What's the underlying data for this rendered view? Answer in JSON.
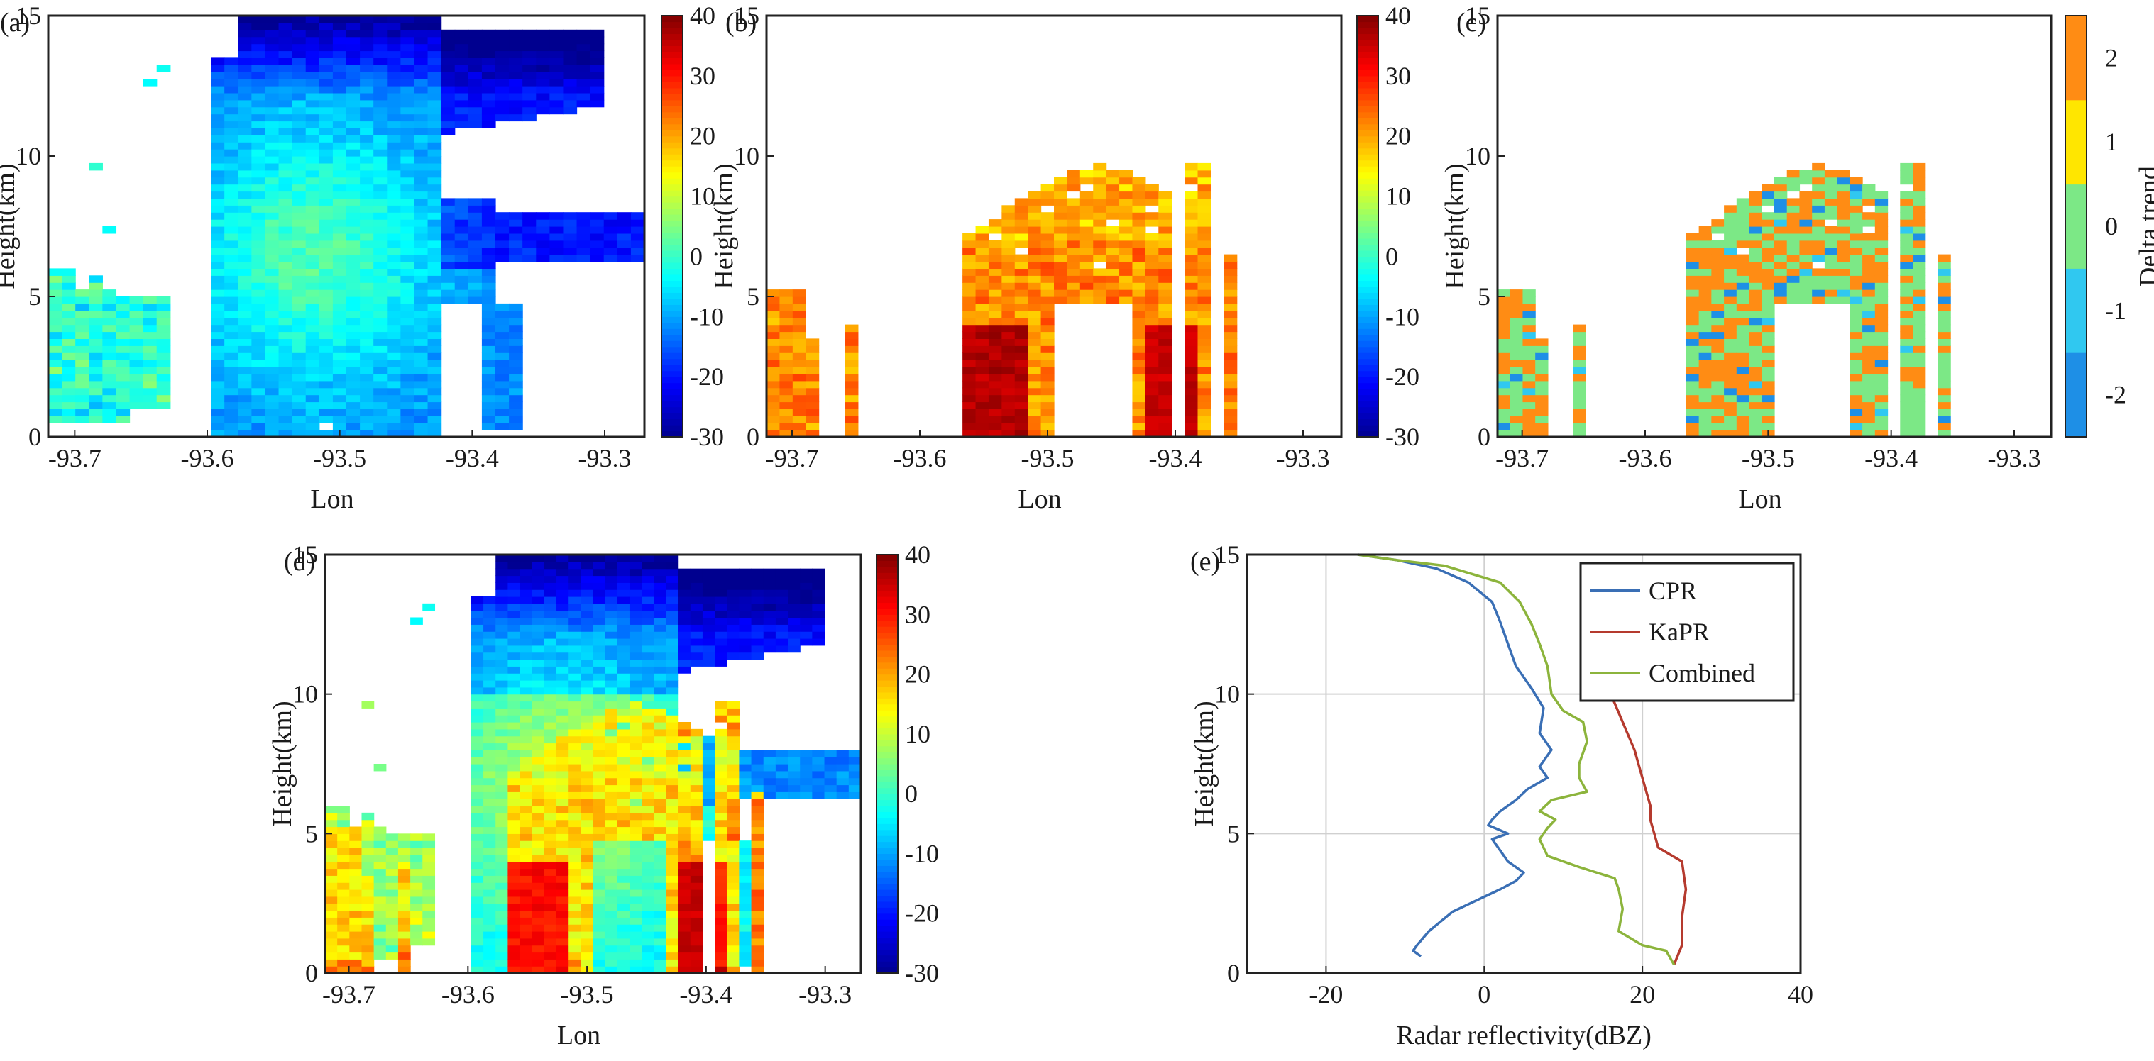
{
  "figure": {
    "colors": {
      "axis": "#222222",
      "grid": "#d0d0d0",
      "jet": [
        "#00008f",
        "#0000ff",
        "#0080ff",
        "#00ffff",
        "#80ff80",
        "#ffff00",
        "#ff8000",
        "#ff0000",
        "#800000"
      ],
      "delta": [
        "#1e8fe6",
        "#30c8f0",
        "#7ce886",
        "#ffe600",
        "#ff8c14"
      ]
    }
  },
  "chart_data": [
    {
      "id": "a",
      "panel_label": "(a)",
      "type": "heatmap",
      "description_role": "CPR reflectivity cross-section",
      "xlabel": "Lon",
      "ylabel": "Height(km)",
      "xlim": [
        -93.72,
        -93.27
      ],
      "ylim": [
        0,
        15
      ],
      "xticks": [
        "-93.7",
        "-93.6",
        "-93.5",
        "-93.4",
        "-93.3"
      ],
      "yticks": [
        "0",
        "5",
        "10",
        "15"
      ],
      "colorbar": {
        "range": [
          -30,
          40
        ],
        "ticks": [
          "40",
          "30",
          "20",
          "10",
          "0",
          "-10",
          "-20",
          "-30"
        ]
      },
      "field": "cpr"
    },
    {
      "id": "b",
      "panel_label": "(b)",
      "type": "heatmap",
      "xlabel": "Lon",
      "ylabel": "Height(km)",
      "xlim": [
        -93.72,
        -93.27
      ],
      "ylim": [
        0,
        15
      ],
      "xticks": [
        "-93.7",
        "-93.6",
        "-93.5",
        "-93.4",
        "-93.3"
      ],
      "yticks": [
        "0",
        "5",
        "10",
        "15"
      ],
      "colorbar": {
        "range": [
          -30,
          40
        ],
        "ticks": [
          "40",
          "30",
          "20",
          "10",
          "0",
          "-10",
          "-20",
          "-30"
        ]
      },
      "field": "kapr"
    },
    {
      "id": "c",
      "panel_label": "(c)",
      "type": "heatmap",
      "xlabel": "Lon",
      "ylabel": "Height(km)",
      "xlim": [
        -93.72,
        -93.27
      ],
      "ylim": [
        0,
        15
      ],
      "xticks": [
        "-93.7",
        "-93.6",
        "-93.5",
        "-93.4",
        "-93.3"
      ],
      "yticks": [
        "0",
        "5",
        "10",
        "15"
      ],
      "colorbar": {
        "label": "Delta trend",
        "ticks": [
          "2",
          "1",
          "0",
          "-1",
          "-2"
        ],
        "classes": [
          -2,
          -1,
          0,
          1,
          2
        ]
      },
      "field": "delta"
    },
    {
      "id": "d",
      "panel_label": "(d)",
      "type": "heatmap",
      "xlabel": "Lon",
      "ylabel": "Height(km)",
      "xlim": [
        -93.72,
        -93.27
      ],
      "ylim": [
        0,
        15
      ],
      "xticks": [
        "-93.7",
        "-93.6",
        "-93.5",
        "-93.4",
        "-93.3"
      ],
      "yticks": [
        "0",
        "5",
        "10",
        "15"
      ],
      "colorbar": {
        "range": [
          -30,
          40
        ],
        "ticks": [
          "40",
          "30",
          "20",
          "10",
          "0",
          "-10",
          "-20",
          "-30"
        ]
      },
      "field": "combined"
    },
    {
      "id": "e",
      "panel_label": "(e)",
      "type": "line",
      "xlabel": "Radar reflectivity(dBZ)",
      "ylabel": "Height(km)",
      "xlim": [
        -30,
        40
      ],
      "ylim": [
        0,
        15
      ],
      "xticks": [
        "-20",
        "0",
        "20",
        "40"
      ],
      "xtick_values": [
        -20,
        0,
        20,
        40
      ],
      "yticks": [
        "0",
        "5",
        "10",
        "15"
      ],
      "ytick_values": [
        0,
        5,
        10,
        15
      ],
      "grid": true,
      "legend_position": "top-right",
      "series": [
        {
          "name": "CPR",
          "color": "#3a6fb5",
          "points": [
            [
              -8,
              0.6
            ],
            [
              -9,
              0.8
            ],
            [
              -8.5,
              1
            ],
            [
              -7,
              1.5
            ],
            [
              -4,
              2.2
            ],
            [
              -1,
              2.6
            ],
            [
              2,
              3
            ],
            [
              4,
              3.3
            ],
            [
              5,
              3.6
            ],
            [
              3,
              4
            ],
            [
              2,
              4.4
            ],
            [
              1,
              4.8
            ],
            [
              3,
              5
            ],
            [
              0.5,
              5.3
            ],
            [
              1,
              5.5
            ],
            [
              2,
              5.8
            ],
            [
              4,
              6.2
            ],
            [
              5.5,
              6.6
            ],
            [
              8,
              7
            ],
            [
              7,
              7.4
            ],
            [
              8,
              7.8
            ],
            [
              8.5,
              8
            ],
            [
              7,
              8.6
            ],
            [
              7.5,
              9.5
            ],
            [
              6,
              10.2
            ],
            [
              4,
              11
            ],
            [
              3,
              11.8
            ],
            [
              2,
              12.6
            ],
            [
              1,
              13.3
            ],
            [
              -2,
              14
            ],
            [
              -6,
              14.5
            ],
            [
              -11,
              14.8
            ],
            [
              -16,
              15
            ]
          ]
        },
        {
          "name": "KaPR",
          "color": "#b53a2e",
          "points": [
            [
              24,
              0.3
            ],
            [
              25,
              1
            ],
            [
              25,
              2
            ],
            [
              25.5,
              3
            ],
            [
              25,
              4
            ],
            [
              22,
              4.5
            ],
            [
              21.5,
              5
            ],
            [
              21,
              5.5
            ],
            [
              21,
              6
            ],
            [
              20,
              7
            ],
            [
              19,
              8
            ],
            [
              17.5,
              9
            ],
            [
              16,
              10
            ],
            [
              15,
              10.5
            ]
          ]
        },
        {
          "name": "Combined",
          "color": "#8cb43c",
          "points": [
            [
              24,
              0.3
            ],
            [
              23,
              0.8
            ],
            [
              20,
              1
            ],
            [
              17,
              1.5
            ],
            [
              17.5,
              2.3
            ],
            [
              17,
              3
            ],
            [
              16.5,
              3.4
            ],
            [
              12,
              3.8
            ],
            [
              8,
              4.2
            ],
            [
              7,
              4.8
            ],
            [
              8,
              5.2
            ],
            [
              9,
              5.5
            ],
            [
              7,
              5.8
            ],
            [
              8.5,
              6.2
            ],
            [
              13,
              6.5
            ],
            [
              12,
              7
            ],
            [
              12,
              7.5
            ],
            [
              13,
              8.3
            ],
            [
              12.5,
              9
            ],
            [
              10,
              9.4
            ],
            [
              8.5,
              10
            ],
            [
              8,
              11
            ],
            [
              7,
              11.8
            ],
            [
              6,
              12.5
            ],
            [
              4.5,
              13.3
            ],
            [
              2,
              14
            ],
            [
              -5,
              14.6
            ],
            [
              -11,
              14.8
            ],
            [
              -16,
              15
            ]
          ]
        }
      ]
    }
  ]
}
